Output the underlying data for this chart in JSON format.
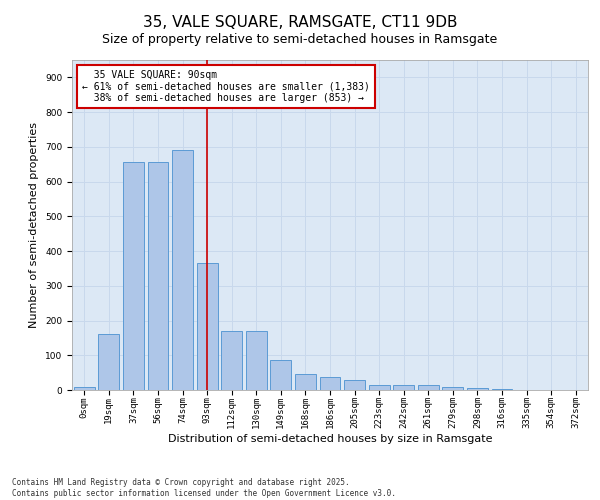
{
  "title": "35, VALE SQUARE, RAMSGATE, CT11 9DB",
  "subtitle": "Size of property relative to semi-detached houses in Ramsgate",
  "xlabel": "Distribution of semi-detached houses by size in Ramsgate",
  "ylabel": "Number of semi-detached properties",
  "categories": [
    "0sqm",
    "19sqm",
    "37sqm",
    "56sqm",
    "74sqm",
    "93sqm",
    "112sqm",
    "130sqm",
    "149sqm",
    "168sqm",
    "186sqm",
    "205sqm",
    "223sqm",
    "242sqm",
    "261sqm",
    "279sqm",
    "298sqm",
    "316sqm",
    "335sqm",
    "354sqm",
    "372sqm"
  ],
  "values": [
    8,
    160,
    655,
    655,
    690,
    365,
    170,
    170,
    85,
    47,
    37,
    30,
    15,
    13,
    13,
    10,
    7,
    3,
    0,
    0,
    0
  ],
  "bar_color": "#aec6e8",
  "bar_edge_color": "#5b9bd5",
  "bar_width": 0.85,
  "red_line_x": 5.0,
  "red_line_color": "#cc0000",
  "annotation_text": "  35 VALE SQUARE: 90sqm\n← 61% of semi-detached houses are smaller (1,383)\n  38% of semi-detached houses are larger (853) →",
  "annotation_box_color": "#ffffff",
  "annotation_box_edge_color": "#cc0000",
  "ylim": [
    0,
    950
  ],
  "yticks": [
    0,
    100,
    200,
    300,
    400,
    500,
    600,
    700,
    800,
    900
  ],
  "ax_facecolor": "#dce8f5",
  "background_color": "#ffffff",
  "grid_color": "#c8d8ec",
  "footnote": "Contains HM Land Registry data © Crown copyright and database right 2025.\nContains public sector information licensed under the Open Government Licence v3.0.",
  "title_fontsize": 11,
  "subtitle_fontsize": 9,
  "xlabel_fontsize": 8,
  "ylabel_fontsize": 8,
  "tick_fontsize": 6.5,
  "annotation_fontsize": 7,
  "footnote_fontsize": 5.5
}
